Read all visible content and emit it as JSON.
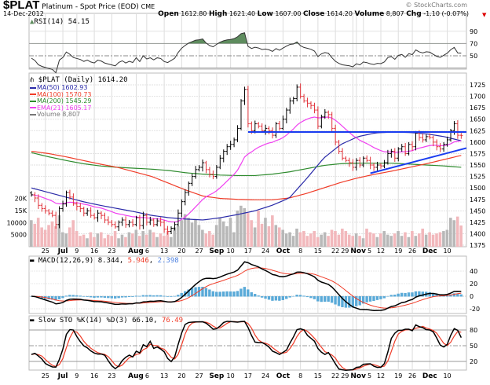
{
  "header": {
    "symbol": "$PLAT",
    "name": "Platinum",
    "desc": "- Spot Price (EOD)",
    "exchange": "CME",
    "date": "14-Dec-2012",
    "credit": "© StockCharts.com",
    "open_label": "Open",
    "open": "1612.80",
    "high_label": "High",
    "high": "1621.40",
    "low_label": "Low",
    "low": "1607.00",
    "close_label": "Close",
    "close": "1614.20",
    "volume_label": "Volume",
    "volume": "8,807",
    "chg_label": "Chg",
    "chg": "-1.10 (-0.07%)"
  },
  "rsi": {
    "label": "RSI(14) 54.15",
    "levels": [
      90,
      70,
      50
    ],
    "color_fill": "#5e8c5e"
  },
  "legend": {
    "price": "$PLAT (Daily) 1614.20",
    "items": [
      {
        "label": "MA(50) 1602.93",
        "color": "#2a2aa8"
      },
      {
        "label": "MA(100) 1570.73",
        "color": "#f03c28"
      },
      {
        "label": "MA(200) 1545.29",
        "color": "#2e8b2e"
      },
      {
        "label": "EMA(21) 1605.17",
        "color": "#f040f0"
      },
      {
        "label": "Volume 8,807",
        "color": "#777777"
      }
    ]
  },
  "macd": {
    "label": "MACD(12,26,9)",
    "v1": "8.344",
    "v2": "5.946",
    "v3": "2.398",
    "ticks": [
      40,
      20,
      0,
      -20
    ]
  },
  "sto": {
    "label": "Slow STO %K(14) %D(3)",
    "v1": "66.10",
    "v2": "76.49",
    "ticks": [
      80,
      50,
      20
    ]
  },
  "chart_data": {
    "type": "ohlc",
    "title": "$PLAT Platinum - Spot Price (EOD)",
    "price_ticks": [
      1725,
      1700,
      1675,
      1650,
      1625,
      1600,
      1575,
      1550,
      1525,
      1500,
      1475,
      1450,
      1425,
      1400,
      1375
    ],
    "volume_ticks": [
      "20K",
      "15K",
      "10000",
      "5000"
    ],
    "x_ticks": [
      {
        "label": "25",
        "date": "06-25"
      },
      {
        "label": "Jul",
        "date": "07-02",
        "bold": true
      },
      {
        "label": "9",
        "date": "07-09"
      },
      {
        "label": "16",
        "date": "07-16"
      },
      {
        "label": "23",
        "date": "07-23"
      },
      {
        "label": "Aug",
        "date": "08-01",
        "bold": true
      },
      {
        "label": "6",
        "date": "08-06"
      },
      {
        "label": "13",
        "date": "08-13"
      },
      {
        "label": "20",
        "date": "08-20"
      },
      {
        "label": "27",
        "date": "08-27"
      },
      {
        "label": "Sep",
        "date": "09-04",
        "bold": true
      },
      {
        "label": "10",
        "date": "09-10"
      },
      {
        "label": "17",
        "date": "09-17"
      },
      {
        "label": "24",
        "date": "09-24"
      },
      {
        "label": "Oct",
        "date": "10-01",
        "bold": true
      },
      {
        "label": "8",
        "date": "10-08"
      },
      {
        "label": "15",
        "date": "10-15"
      },
      {
        "label": "22",
        "date": "10-22"
      },
      {
        "label": "29",
        "date": "10-31"
      },
      {
        "label": "Nov",
        "date": "11-01",
        "bold": true
      },
      {
        "label": "5",
        "date": "11-05"
      },
      {
        "label": "12",
        "date": "11-12"
      },
      {
        "label": "19",
        "date": "11-19"
      },
      {
        "label": "26",
        "date": "11-26"
      },
      {
        "label": "Dec",
        "date": "12-03",
        "bold": true
      },
      {
        "label": "10",
        "date": "12-10"
      }
    ],
    "dates": [
      "06-19",
      "06-20",
      "06-21",
      "06-22",
      "06-25",
      "06-26",
      "06-27",
      "06-28",
      "06-29",
      "07-02",
      "07-03",
      "07-05",
      "07-06",
      "07-09",
      "07-10",
      "07-11",
      "07-12",
      "07-13",
      "07-16",
      "07-17",
      "07-18",
      "07-19",
      "07-20",
      "07-23",
      "07-24",
      "07-25",
      "07-26",
      "07-27",
      "07-30",
      "07-31",
      "08-01",
      "08-02",
      "08-03",
      "08-06",
      "08-07",
      "08-08",
      "08-09",
      "08-10",
      "08-13",
      "08-14",
      "08-15",
      "08-16",
      "08-17",
      "08-20",
      "08-21",
      "08-22",
      "08-23",
      "08-24",
      "08-27",
      "08-28",
      "08-29",
      "08-30",
      "08-31",
      "09-04",
      "09-05",
      "09-06",
      "09-07",
      "09-10",
      "09-11",
      "09-12",
      "09-13",
      "09-14",
      "09-17",
      "09-18",
      "09-19",
      "09-20",
      "09-21",
      "09-24",
      "09-25",
      "09-26",
      "09-27",
      "09-28",
      "10-01",
      "10-02",
      "10-03",
      "10-04",
      "10-05",
      "10-08",
      "10-09",
      "10-10",
      "10-11",
      "10-12",
      "10-15",
      "10-16",
      "10-17",
      "10-18",
      "10-19",
      "10-22",
      "10-23",
      "10-24",
      "10-25",
      "10-26",
      "10-31",
      "11-01",
      "11-02",
      "11-05",
      "11-06",
      "11-07",
      "11-08",
      "11-09",
      "11-12",
      "11-13",
      "11-14",
      "11-15",
      "11-16",
      "11-19",
      "11-20",
      "11-21",
      "11-23",
      "11-26",
      "11-27",
      "11-28",
      "11-29",
      "11-30",
      "12-03",
      "12-04",
      "12-05",
      "12-06",
      "12-07",
      "12-10",
      "12-11",
      "12-12",
      "12-13",
      "12-14"
    ],
    "close": [
      1485,
      1478,
      1462,
      1455,
      1450,
      1445,
      1440,
      1420,
      1455,
      1465,
      1490,
      1480,
      1465,
      1460,
      1455,
      1445,
      1450,
      1440,
      1435,
      1445,
      1440,
      1430,
      1425,
      1420,
      1415,
      1425,
      1430,
      1420,
      1425,
      1420,
      1435,
      1418,
      1440,
      1425,
      1430,
      1420,
      1428,
      1425,
      1410,
      1405,
      1412,
      1420,
      1445,
      1470,
      1490,
      1510,
      1525,
      1540,
      1545,
      1555,
      1540,
      1530,
      1525,
      1545,
      1565,
      1580,
      1590,
      1595,
      1605,
      1630,
      1690,
      1715,
      1640,
      1625,
      1640,
      1635,
      1625,
      1630,
      1625,
      1615,
      1640,
      1630,
      1650,
      1670,
      1690,
      1695,
      1720,
      1700,
      1690,
      1685,
      1680,
      1670,
      1635,
      1655,
      1665,
      1660,
      1630,
      1600,
      1580,
      1565,
      1560,
      1555,
      1545,
      1560,
      1550,
      1565,
      1560,
      1550,
      1545,
      1550,
      1548,
      1555,
      1575,
      1580,
      1565,
      1585,
      1590,
      1575,
      1595,
      1590,
      1620,
      1610,
      1605,
      1612,
      1610,
      1600,
      1590,
      1585,
      1595,
      1605,
      1625,
      1640,
      1615,
      1614.2
    ],
    "volume": [
      11000,
      9500,
      12000,
      8000,
      7000,
      9000,
      10500,
      8500,
      13000,
      6000,
      5500,
      8000,
      11000,
      6500,
      4500,
      5000,
      3500,
      6000,
      4000,
      5500,
      6000,
      3500,
      5000,
      4500,
      6500,
      3500,
      5000,
      4000,
      6000,
      5500,
      7000,
      4500,
      6500,
      5000,
      7000,
      6000,
      4000,
      5500,
      4500,
      6500,
      4000,
      8000,
      8500,
      11000,
      13500,
      12000,
      10000,
      11500,
      9000,
      7000,
      5500,
      6500,
      5000,
      9000,
      12000,
      10500,
      8500,
      12000,
      6000,
      15000,
      17000,
      16000,
      14000,
      11000,
      8000,
      15000,
      9500,
      12000,
      8500,
      13000,
      9000,
      8000,
      7000,
      5500,
      6000,
      4500,
      7500,
      6000,
      6500,
      4500,
      5500,
      6500,
      4000,
      5000,
      6000,
      4500,
      7000,
      6500,
      5000,
      7500,
      6500,
      5000,
      4500,
      5500,
      4500,
      3500,
      7500,
      6000,
      5500,
      4000,
      5500,
      6500,
      5000,
      4500,
      5500,
      6500,
      4500,
      6000,
      4000,
      6500,
      4500,
      5500,
      7500,
      5000,
      6000,
      5000,
      5500,
      6000,
      6500,
      7000,
      12000,
      11000,
      12500,
      8807
    ],
    "ma_weekly": {
      "ma50": [
        1500,
        1490,
        1480,
        1470,
        1462,
        1455,
        1448,
        1440,
        1435,
        1432,
        1430,
        1435,
        1442,
        1450,
        1462,
        1478,
        1520,
        1565,
        1595,
        1612,
        1620,
        1622,
        1621,
        1618,
        1612,
        1603
      ],
      "ma100": [
        1580,
        1575,
        1568,
        1560,
        1552,
        1545,
        1535,
        1525,
        1510,
        1495,
        1482,
        1477,
        1475,
        1474,
        1474,
        1478,
        1488,
        1500,
        1512,
        1522,
        1530,
        1537,
        1545,
        1553,
        1562,
        1571
      ],
      "ma200": [
        1577,
        1568,
        1560,
        1553,
        1548,
        1545,
        1543,
        1541,
        1538,
        1533,
        1530,
        1528,
        1527,
        1527,
        1530,
        1535,
        1542,
        1549,
        1553,
        1554,
        1554,
        1554,
        1552,
        1550,
        1548,
        1545
      ]
    },
    "trendlines": [
      {
        "from": {
          "date": "09-17",
          "price": 1622
        },
        "to": {
          "date": "12-14",
          "price": 1622
        },
        "color": "#1a3cf0"
      },
      {
        "from": {
          "date": "11-07",
          "price": 1532
        },
        "to": {
          "date": "12-14",
          "price": 1587
        },
        "color": "#1a3cf0"
      }
    ],
    "colors": {
      "up": "#000000",
      "down": "#e0333a",
      "vol_up": "#b8b8b8",
      "vol_down": "#f2b8bc",
      "macd": "#000000",
      "signal": "#f03c28",
      "hist": "#5aaad8"
    }
  }
}
